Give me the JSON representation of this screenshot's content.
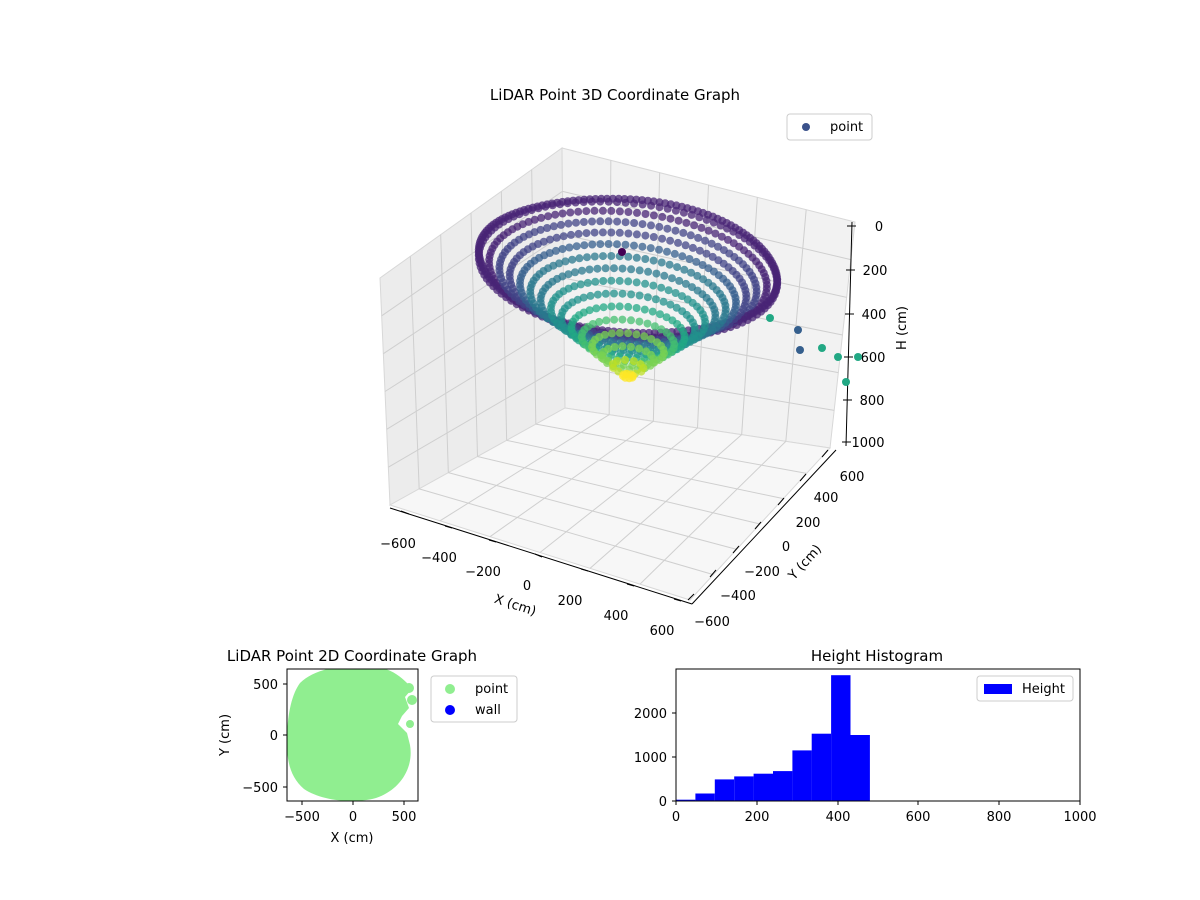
{
  "figure": {
    "background": "#ffffff"
  },
  "chart_data": [
    {
      "type": "scatter",
      "projection": "3d",
      "title": "LiDAR Point 3D Coordinate Graph",
      "xlabel": "X (cm)",
      "ylabel": "Y (cm)",
      "zlabel": "H (cm)",
      "xlim": [
        -650,
        650
      ],
      "ylim": [
        -650,
        650
      ],
      "zlim": [
        0,
        1000
      ],
      "z_inverted": true,
      "x_ticks": [
        "−600",
        "−400",
        "−200",
        "0",
        "200",
        "400",
        "600"
      ],
      "y_ticks": [
        "−600",
        "−400",
        "−200",
        "0",
        "200",
        "400",
        "600"
      ],
      "z_ticks": [
        "0",
        "200",
        "400",
        "600",
        "800",
        "1000"
      ],
      "grid": true,
      "legend": {
        "position": "top-right",
        "entries": [
          "point"
        ]
      },
      "series": [
        {
          "name": "point",
          "color": "#3b528b",
          "colormap": "viridis",
          "shape": "bowl",
          "radius_cm": 600,
          "depth_range_cm": [
            40,
            620
          ]
        }
      ]
    },
    {
      "type": "scatter",
      "title": "LiDAR Point 2D Coordinate Graph",
      "xlabel": "X (cm)",
      "ylabel": "Y (cm)",
      "xlim": [
        -650,
        620
      ],
      "ylim": [
        -640,
        640
      ],
      "x_ticks": [
        "−500",
        "0",
        "500"
      ],
      "y_ticks": [
        "−500",
        "0",
        "500"
      ],
      "legend": {
        "position": "outside-right",
        "entries": [
          "point",
          "wall"
        ]
      },
      "series": [
        {
          "name": "point",
          "color": "#90ee90"
        },
        {
          "name": "wall",
          "color": "#0000ff"
        }
      ]
    },
    {
      "type": "bar",
      "histogram": true,
      "title": "Height Histogram",
      "xlim": [
        0,
        1000
      ],
      "ylim": [
        0,
        3000
      ],
      "x_ticks": [
        "0",
        "200",
        "400",
        "600",
        "800",
        "1000"
      ],
      "y_ticks": [
        "0",
        "1000",
        "2000"
      ],
      "legend": {
        "position": "top-right",
        "entries": [
          "Height"
        ]
      },
      "series": [
        {
          "name": "Height",
          "color": "#0000ff",
          "bins": [
            {
              "x0": 0,
              "x1": 48,
              "count": 30
            },
            {
              "x0": 48,
              "x1": 96,
              "count": 170
            },
            {
              "x0": 96,
              "x1": 144,
              "count": 490
            },
            {
              "x0": 144,
              "x1": 192,
              "count": 560
            },
            {
              "x0": 192,
              "x1": 240,
              "count": 620
            },
            {
              "x0": 240,
              "x1": 288,
              "count": 680
            },
            {
              "x0": 288,
              "x1": 336,
              "count": 1150
            },
            {
              "x0": 336,
              "x1": 384,
              "count": 1530
            },
            {
              "x0": 384,
              "x1": 432,
              "count": 2860
            },
            {
              "x0": 432,
              "x1": 480,
              "count": 1500
            }
          ]
        }
      ]
    }
  ]
}
